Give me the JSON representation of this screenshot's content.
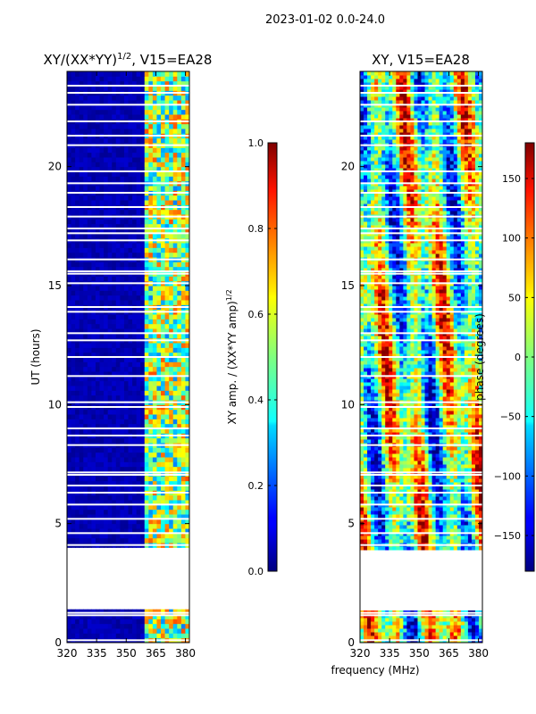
{
  "suptitle": "2023-01-02 0.0-24.0",
  "common_xlabel": "frequency (MHz)",
  "chart_data": [
    {
      "type": "heatmap",
      "title": "XY/(XX*YY)^1/2, V15=EA28",
      "title_main": "XY/(XX*YY)",
      "title_sup": "1/2",
      "title_tail": ", V15=EA28",
      "ylabel": "UT (hours)",
      "xlim": [
        320,
        382
      ],
      "ylim": [
        0,
        24
      ],
      "xticks": [
        "320",
        "335",
        "350",
        "365",
        "380"
      ],
      "yticks": [
        "0",
        "5",
        "10",
        "15",
        "20"
      ],
      "no_data_ranges_hours": [
        [
          1.3,
          3.9
        ]
      ],
      "active_band_mhz": [
        360,
        382
      ]
    },
    {
      "type": "colorbar",
      "label": "XY amp. / (XX*YY amp)",
      "label_sup": "1/2",
      "range": [
        0.0,
        1.0
      ],
      "ticks": [
        "0.0",
        "0.2",
        "0.4",
        "0.6",
        "0.8",
        "1.0"
      ],
      "colormap": "jet"
    },
    {
      "type": "heatmap",
      "title": "XY, V15=EA28",
      "xlim": [
        320,
        382
      ],
      "ylim": [
        0,
        24
      ],
      "xticks": [
        "320",
        "335",
        "350",
        "365",
        "380"
      ],
      "yticks": [
        "0",
        "5",
        "10",
        "15",
        "20"
      ],
      "no_data_ranges_hours": [
        [
          1.3,
          3.9
        ]
      ]
    },
    {
      "type": "colorbar",
      "label": "phase (degrees)",
      "range": [
        -180,
        180
      ],
      "ticks": [
        "−150",
        "−100",
        "−50",
        "0",
        "50",
        "100",
        "150"
      ],
      "colormap": "jet"
    }
  ]
}
